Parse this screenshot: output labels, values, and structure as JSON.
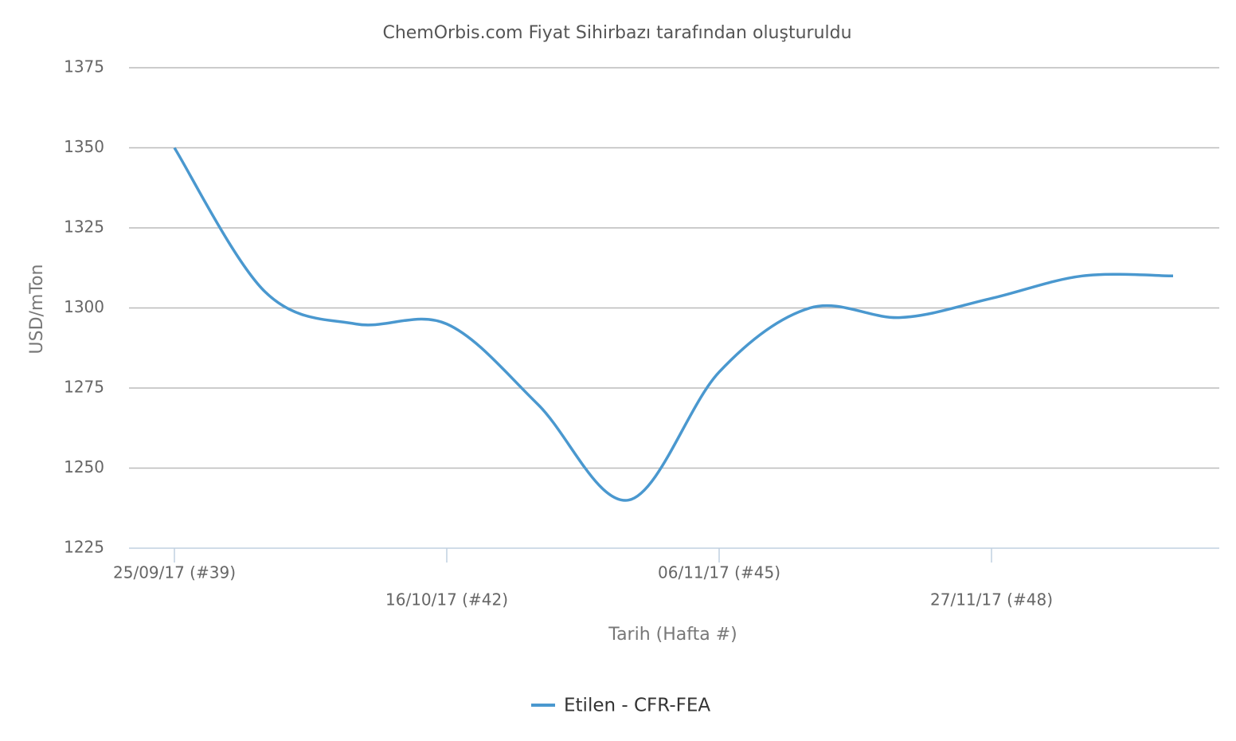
{
  "chart_data": {
    "type": "line",
    "title": "ChemOrbis.com Fiyat Sihirbazı tarafından oluşturuldu",
    "x_label": "Tarih (Hafta #)",
    "y_label": "USD/mTon",
    "categories": [
      "25/09/17 (#39)",
      null,
      null,
      "16/10/17 (#42)",
      null,
      null,
      "06/11/17 (#45)",
      null,
      null,
      "27/11/17 (#48)",
      null,
      null
    ],
    "series": [
      {
        "name": "Etilen - CFR-FEA",
        "color": "#4a98cf",
        "values": [
          1350,
          1305,
          1295,
          1295,
          1270,
          1240,
          1280,
          1300,
          1297,
          1303,
          1310,
          1310
        ]
      }
    ],
    "ylim": [
      1225,
      1375
    ],
    "yticks": [
      1225,
      1250,
      1275,
      1300,
      1325,
      1350,
      1375
    ],
    "grid": true
  }
}
